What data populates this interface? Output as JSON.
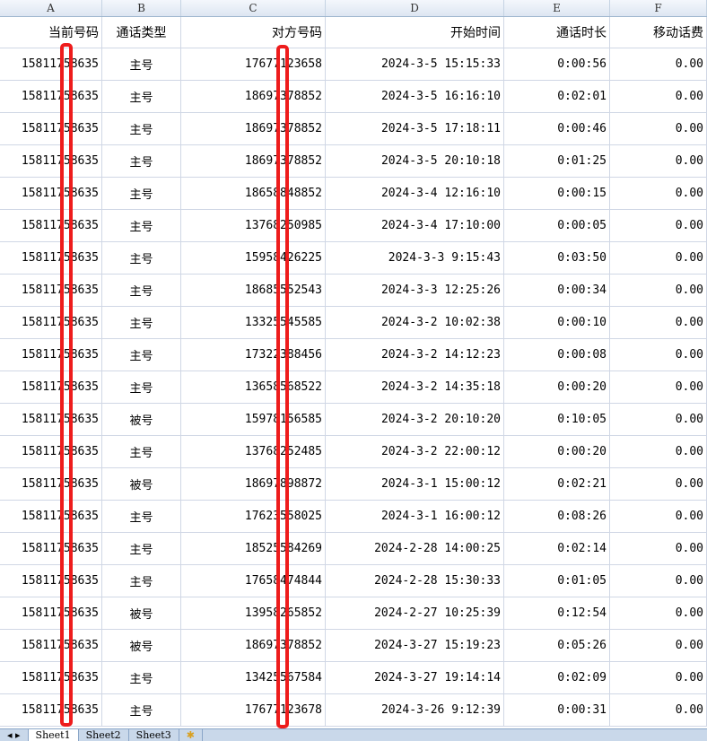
{
  "columns": [
    "A",
    "B",
    "C",
    "D",
    "E",
    "F"
  ],
  "headers": [
    "当前号码",
    "通话类型",
    "对方号码",
    "开始时间",
    "通话时长",
    "移动话费"
  ],
  "rows": [
    [
      "15811758635",
      "主号",
      "17677123658",
      "2024-3-5 15:15:33",
      "0:00:56",
      "0.00"
    ],
    [
      "15811758635",
      "主号",
      "18697378852",
      "2024-3-5 16:16:10",
      "0:02:01",
      "0.00"
    ],
    [
      "15811758635",
      "主号",
      "18697378852",
      "2024-3-5 17:18:11",
      "0:00:46",
      "0.00"
    ],
    [
      "15811758635",
      "主号",
      "18697378852",
      "2024-3-5 20:10:18",
      "0:01:25",
      "0.00"
    ],
    [
      "15811758635",
      "主号",
      "18658848852",
      "2024-3-4 12:16:10",
      "0:00:15",
      "0.00"
    ],
    [
      "15811758635",
      "主号",
      "13768250985",
      "2024-3-4 17:10:00",
      "0:00:05",
      "0.00"
    ],
    [
      "15811758635",
      "主号",
      "15958426225",
      "2024-3-3 9:15:43",
      "0:03:50",
      "0.00"
    ],
    [
      "15811758635",
      "主号",
      "18685552543",
      "2024-3-3 12:25:26",
      "0:00:34",
      "0.00"
    ],
    [
      "15811758635",
      "主号",
      "13325545585",
      "2024-3-2 10:02:38",
      "0:00:10",
      "0.00"
    ],
    [
      "15811758635",
      "主号",
      "17322388456",
      "2024-3-2 14:12:23",
      "0:00:08",
      "0.00"
    ],
    [
      "15811758635",
      "主号",
      "13658568522",
      "2024-3-2 14:35:18",
      "0:00:20",
      "0.00"
    ],
    [
      "15811758635",
      "被号",
      "15978156585",
      "2024-3-2 20:10:20",
      "0:10:05",
      "0.00"
    ],
    [
      "15811758635",
      "主号",
      "13768252485",
      "2024-3-2 22:00:12",
      "0:00:20",
      "0.00"
    ],
    [
      "15811758635",
      "被号",
      "18697898872",
      "2024-3-1 15:00:12",
      "0:02:21",
      "0.00"
    ],
    [
      "15811758635",
      "主号",
      "17623558025",
      "2024-3-1 16:00:12",
      "0:08:26",
      "0.00"
    ],
    [
      "15811758635",
      "主号",
      "18525584269",
      "2024-2-28 14:00:25",
      "0:02:14",
      "0.00"
    ],
    [
      "15811758635",
      "主号",
      "17658474844",
      "2024-2-28 15:30:33",
      "0:01:05",
      "0.00"
    ],
    [
      "15811758635",
      "被号",
      "13958265852",
      "2024-2-27 10:25:39",
      "0:12:54",
      "0.00"
    ],
    [
      "15811758635",
      "被号",
      "18697378852",
      "2024-3-27 15:19:23",
      "0:05:26",
      "0.00"
    ],
    [
      "15811758635",
      "主号",
      "13425567584",
      "2024-3-27 19:14:14",
      "0:02:09",
      "0.00"
    ],
    [
      "15811758635",
      "主号",
      "17677123678",
      "2024-3-26 9:12:39",
      "0:00:31",
      "0.00"
    ]
  ],
  "sheet_tabs": [
    "Sheet1",
    "Sheet2",
    "Sheet3"
  ],
  "redaction_color": "#ee1c1c"
}
